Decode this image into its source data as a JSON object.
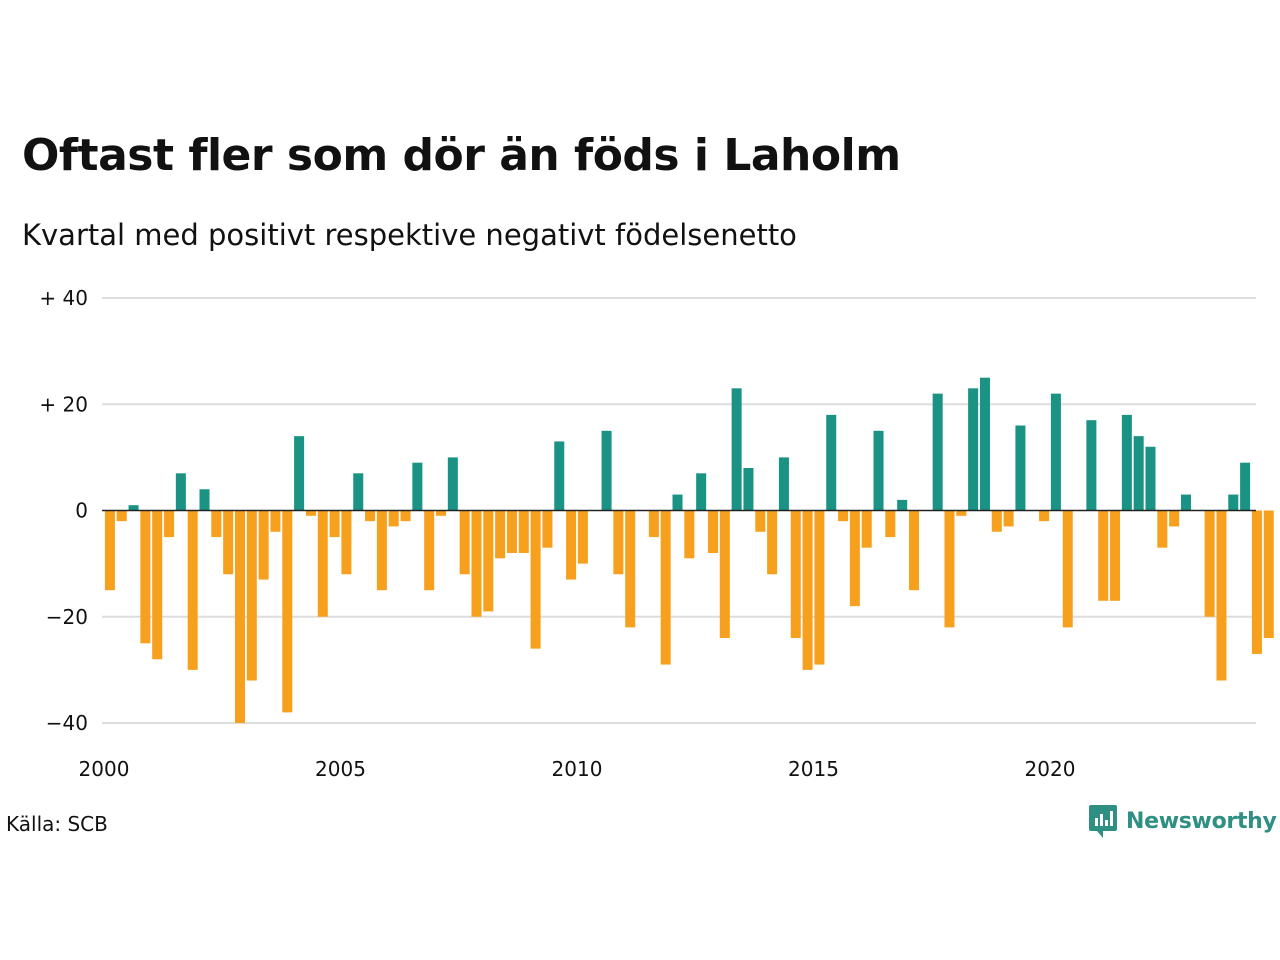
{
  "title": "Oftast fler som dör än föds i Laholm",
  "subtitle": "Kvartal med positivt respektive negativt födelsenetto",
  "source": "Källa: SCB",
  "brand": "Newsworthy",
  "colors": {
    "positive": "#1a9384",
    "negative": "#f7a01e",
    "grid": "#dddddd",
    "zero": "#222222",
    "brand": "#2f8f83"
  },
  "chart_data": {
    "type": "bar",
    "series_name": "Födelsenetto",
    "x_start": 2000.0,
    "x_step": 0.25,
    "values": [
      -15,
      -2,
      1,
      -25,
      -28,
      -5,
      7,
      -30,
      4,
      -5,
      -12,
      -40,
      -32,
      -13,
      -4,
      -38,
      14,
      -1,
      -20,
      -5,
      -12,
      7,
      -2,
      -15,
      -3,
      -2,
      9,
      -15,
      -1,
      10,
      -12,
      -20,
      -19,
      -9,
      -8,
      -8,
      -26,
      -7,
      13,
      -13,
      -10,
      0,
      15,
      -12,
      -22,
      0,
      -5,
      -29,
      3,
      -9,
      7,
      -8,
      -24,
      23,
      8,
      -4,
      -12,
      10,
      -24,
      -30,
      -29,
      18,
      -2,
      -18,
      -7,
      15,
      -5,
      2,
      -15,
      0,
      22,
      -22,
      -1,
      23,
      25,
      -4,
      -3,
      16,
      0,
      -2,
      22,
      -22,
      0,
      17,
      -17,
      -17,
      18,
      14,
      12,
      -7,
      -3,
      3,
      0,
      -20,
      -32,
      3,
      9,
      -27,
      -24
    ],
    "ylim": [
      -40,
      40
    ],
    "yticks": [
      {
        "value": 40,
        "label": "+ 40"
      },
      {
        "value": 20,
        "label": "+ 20"
      },
      {
        "value": 0,
        "label": "0"
      },
      {
        "value": -20,
        "label": "−20"
      },
      {
        "value": -40,
        "label": "−40"
      }
    ],
    "xticks": [
      {
        "value": 2000,
        "label": "2000"
      },
      {
        "value": 2005,
        "label": "2005"
      },
      {
        "value": 2010,
        "label": "2010"
      },
      {
        "value": 2015,
        "label": "2015"
      },
      {
        "value": 2020,
        "label": "2020"
      }
    ]
  }
}
